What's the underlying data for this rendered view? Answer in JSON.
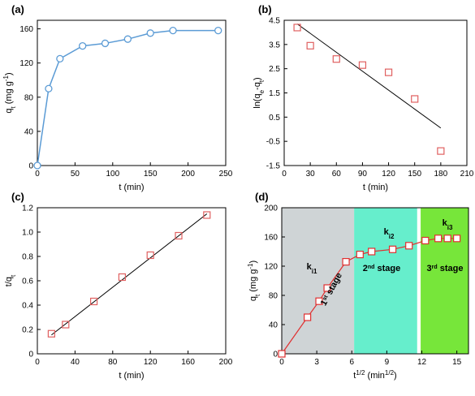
{
  "colors": {
    "blue_line": "#5b9bd5",
    "red_marker": "#e06060",
    "red_line": "#e03030",
    "stage1_bg": "#cfd4d6",
    "stage2_bg": "#66eecc",
    "stage3_bg": "#77e63a"
  },
  "chart_data": [
    {
      "panel": "(a)",
      "type": "line",
      "xlabel_main": "t (min)",
      "ylabel_main": "q",
      "ylabel_sub": "t",
      "ylabel_tail": " (mg g",
      "ylabel_sup": "-1",
      "ylabel_close": ")",
      "xlim": [
        0,
        250
      ],
      "ylim": [
        0,
        170
      ],
      "xticks": [
        "0",
        "50",
        "100",
        "150",
        "200",
        "250"
      ],
      "yticks": [
        "0",
        "40",
        "80",
        "120",
        "160"
      ],
      "x": [
        0,
        15,
        30,
        60,
        90,
        120,
        150,
        180,
        240
      ],
      "y": [
        0,
        90,
        125,
        140,
        143,
        148,
        155,
        158,
        158
      ]
    },
    {
      "panel": "(b)",
      "type": "scatter",
      "xlabel_main": "t (min)",
      "ylabel_main": "ln(q",
      "ylabel_sub1": "e",
      "ylabel_mid": "-q",
      "ylabel_sub2": "t",
      "ylabel_close": ")",
      "xlim": [
        0,
        210
      ],
      "ylim": [
        -1.5,
        4.5
      ],
      "xticks": [
        "0",
        "30",
        "60",
        "90",
        "120",
        "150",
        "180",
        "210"
      ],
      "yticks": [
        "-1.5",
        "-0.5",
        "0.5",
        "1.5",
        "2.5",
        "3.5",
        "4.5"
      ],
      "x": [
        15,
        30,
        60,
        90,
        120,
        150,
        180
      ],
      "y": [
        4.2,
        3.45,
        2.9,
        2.65,
        2.35,
        1.25,
        -0.9
      ],
      "fit": {
        "x": [
          15,
          180
        ],
        "y": [
          4.35,
          0.05
        ]
      }
    },
    {
      "panel": "(c)",
      "type": "scatter",
      "xlabel_main": "t (min)",
      "ylabel_main": "t/q",
      "ylabel_sub": "t",
      "xlim": [
        0,
        200
      ],
      "ylim": [
        0,
        1.2
      ],
      "xticks": [
        "0",
        "40",
        "80",
        "120",
        "160",
        "200"
      ],
      "yticks": [
        "0",
        "0.2",
        "0.4",
        "0.6",
        "0.8",
        "1.0",
        "1.2"
      ],
      "x": [
        15,
        30,
        60,
        90,
        120,
        150,
        180
      ],
      "y": [
        0.165,
        0.24,
        0.43,
        0.63,
        0.81,
        0.97,
        1.14
      ],
      "fit": {
        "x": [
          15,
          180
        ],
        "y": [
          0.155,
          1.15
        ]
      }
    },
    {
      "panel": "(d)",
      "type": "line",
      "xlabel_main": "t",
      "xlabel_sup": "1/2",
      "xlabel_tail": " (min",
      "xlabel_sup2": "1/2",
      "xlabel_close": ")",
      "ylabel_main": "q",
      "ylabel_sub": "t",
      "ylabel_tail": " (mg g",
      "ylabel_sup": "-1",
      "ylabel_close": ")",
      "xlim": [
        0,
        16
      ],
      "ylim": [
        0,
        200
      ],
      "xticks": [
        "0",
        "3",
        "6",
        "9",
        "12",
        "15"
      ],
      "yticks": [
        "0",
        "40",
        "80",
        "120",
        "160",
        "200"
      ],
      "x": [
        0,
        2.2,
        3.2,
        3.9,
        5.5,
        6.7,
        7.7,
        9.5,
        10.9,
        12.3,
        13.4,
        14.2,
        15.0
      ],
      "y": [
        0,
        50,
        72,
        90,
        126,
        136,
        140,
        143,
        148,
        155,
        158,
        158,
        158
      ],
      "stages": [
        {
          "from": 0,
          "to": 6.2,
          "label_main": "1",
          "label_sup": "st",
          "label_tail": " stage",
          "k_main": "k",
          "k_sub": "i1"
        },
        {
          "from": 6.2,
          "to": 11.6,
          "label_main": "2",
          "label_sup": "nd",
          "label_tail": " stage",
          "k_main": "k",
          "k_sub": "i2"
        },
        {
          "from": 11.9,
          "to": 16,
          "label_main": "3",
          "label_sup": "rd",
          "label_tail": " stage",
          "k_main": "k",
          "k_sub": "i3"
        }
      ]
    }
  ]
}
